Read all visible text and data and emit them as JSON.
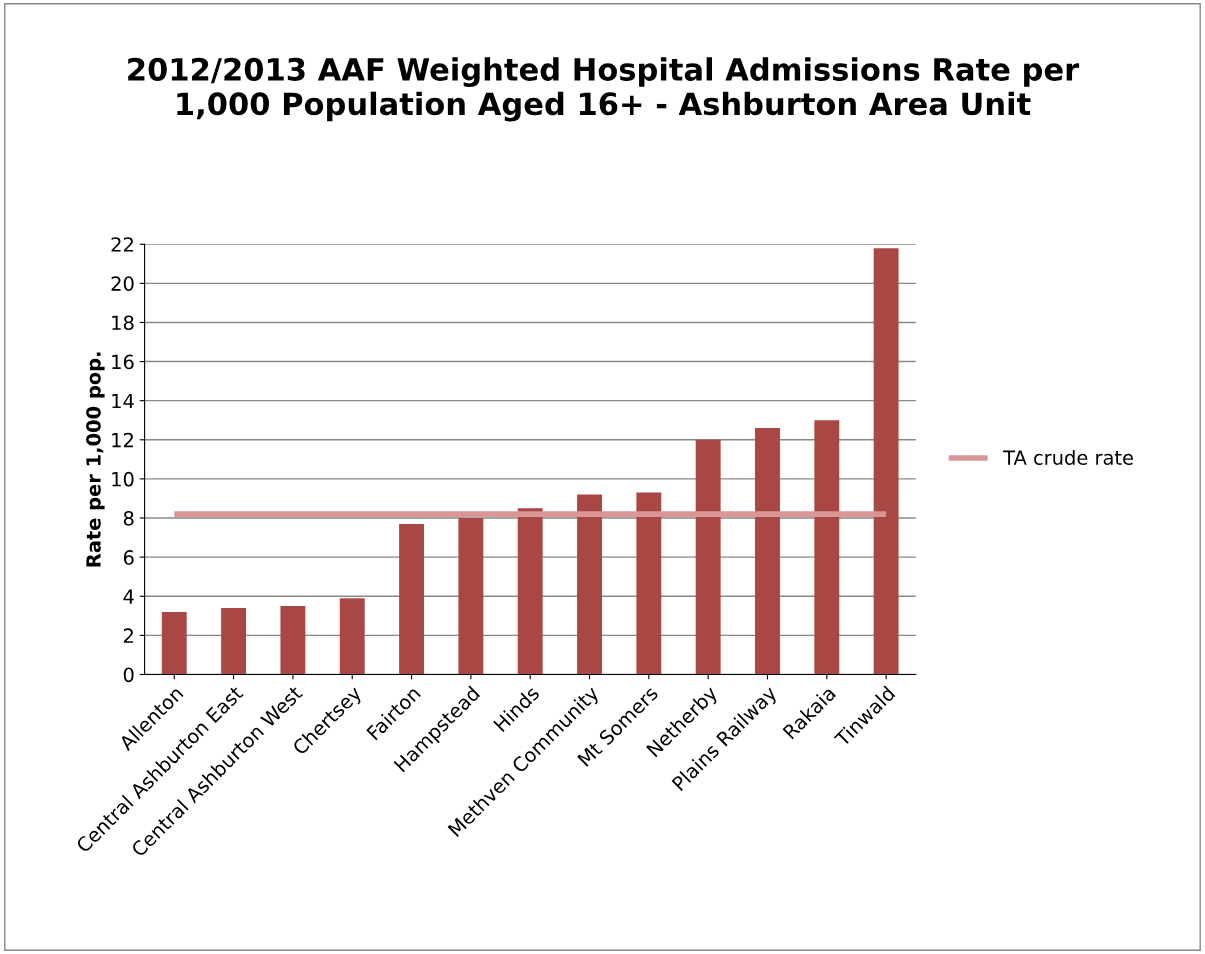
{
  "chart_data": {
    "type": "bar",
    "title": "2012/2013 AAF Weighted Hospital Admissions Rate per\n1,000 Population Aged 16+ - Ashburton Area Unit",
    "ylabel": "Rate per 1,000 pop.",
    "categories": [
      "Allenton",
      "Central Ashburton East",
      "Central Ashburton West",
      "Chertsey",
      "Fairton",
      "Hampstead",
      "Hinds",
      "Methven Community",
      "Mt Somers",
      "Netherby",
      "Plains Railway",
      "Rakaia",
      "Tinwald"
    ],
    "series": [
      {
        "color": "#a94744",
        "values": [
          3.2,
          3.4,
          3.5,
          3.9,
          7.7,
          8.0,
          8.5,
          9.2,
          9.3,
          12.0,
          12.6,
          13.0,
          21.8
        ]
      },
      {
        "type": "line",
        "name": "TA crude rate",
        "color": "#d99694",
        "values": [
          8.2,
          8.2,
          8.2,
          8.2,
          8.2,
          8.2,
          8.2,
          8.2,
          8.2,
          8.2,
          8.2,
          8.2,
          8.2
        ]
      }
    ],
    "ylim": [
      0,
      22
    ],
    "yticks": [
      0,
      2,
      4,
      6,
      8,
      10,
      12,
      14,
      16,
      18,
      20,
      22
    ],
    "grid": "y",
    "legend": "right"
  }
}
